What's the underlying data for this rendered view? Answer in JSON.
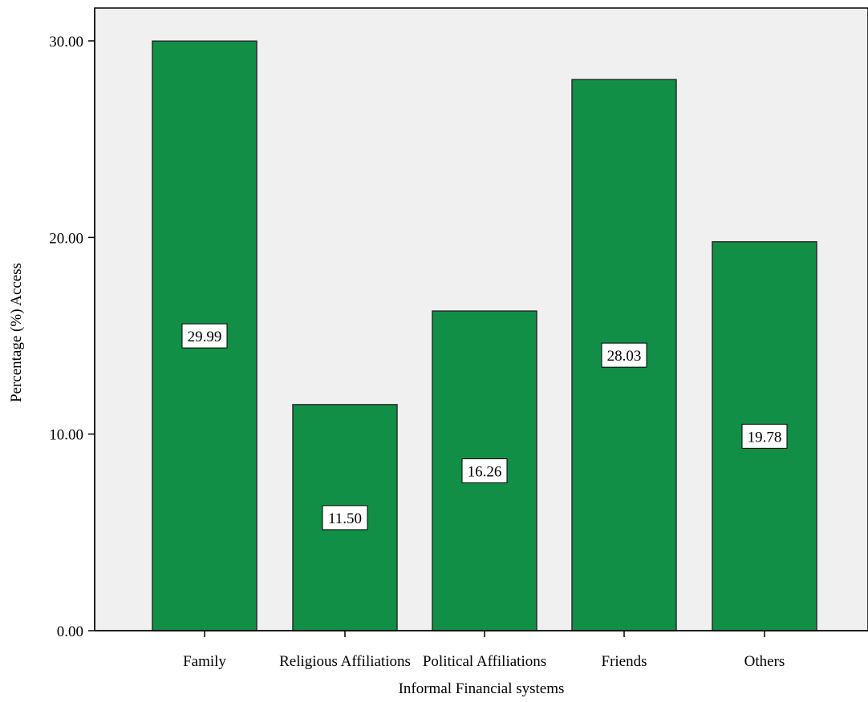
{
  "chart_data": {
    "type": "bar",
    "categories": [
      "Family",
      "Religious Affiliations",
      "Political Affiliations",
      "Friends",
      "Others"
    ],
    "values": [
      29.99,
      11.5,
      16.26,
      28.03,
      19.78
    ],
    "data_labels": [
      "29.99",
      "11.50",
      "16.26",
      "28.03",
      "19.78"
    ],
    "xlabel": "Informal Financial systems",
    "ylabel": "Percentage (%) Access",
    "ylim": [
      0,
      30
    ],
    "yticks": [
      0,
      10,
      20,
      30
    ],
    "ytick_labels": [
      "0.00",
      "10.00",
      "20.00",
      "30.00"
    ],
    "grid": false,
    "bar_color": "#128f46",
    "plot_background": "#f0f0f0"
  }
}
